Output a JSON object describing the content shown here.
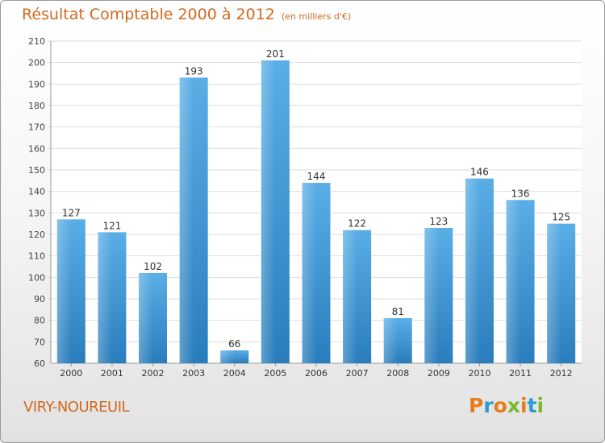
{
  "chart_data": {
    "type": "bar",
    "title": "Résultat Comptable 2000 à 2012",
    "subtitle": "(en milliers d'€)",
    "categories": [
      "2000",
      "2001",
      "2002",
      "2003",
      "2004",
      "2005",
      "2006",
      "2007",
      "2008",
      "2009",
      "2010",
      "2011",
      "2012"
    ],
    "values": [
      127,
      121,
      102,
      193,
      66,
      201,
      144,
      122,
      81,
      123,
      146,
      136,
      125
    ],
    "ylim": [
      60,
      210
    ],
    "yticks": [
      60,
      70,
      80,
      90,
      100,
      110,
      120,
      130,
      140,
      150,
      160,
      170,
      180,
      190,
      200,
      210
    ],
    "xlabel": "",
    "ylabel": "",
    "grid": true,
    "bar_color": "#4a9fd8",
    "grid_color": "#dddddd"
  },
  "footer": {
    "city": "VIRY-NOUREUIL",
    "logo_letters": [
      {
        "char": "P",
        "color": "#e87b1c"
      },
      {
        "char": "r",
        "color": "#2e9ad0"
      },
      {
        "char": "o",
        "color": "#e87b1c"
      },
      {
        "char": "x",
        "color": "#7cb82f"
      },
      {
        "char": "i",
        "color": "#e87b1c"
      },
      {
        "char": "t",
        "color": "#2e9ad0"
      },
      {
        "char": "i",
        "color": "#7cb82f"
      }
    ]
  }
}
